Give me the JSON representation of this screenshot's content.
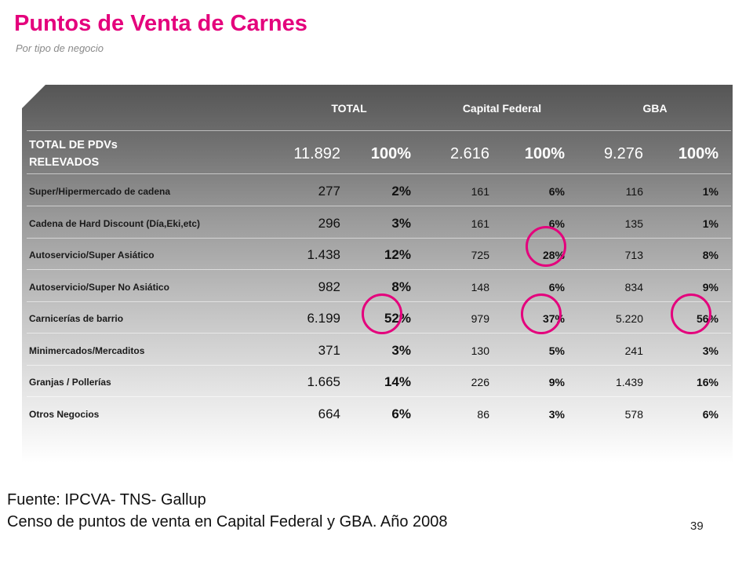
{
  "title": "Puntos de Venta de Carnes",
  "subtitle": "Por tipo de negocio",
  "accent_color": "#e4007c",
  "columns": {
    "total": "TOTAL",
    "capital": "Capital Federal",
    "gba": "GBA"
  },
  "total_row": {
    "label": "TOTAL DE PDVs RELEVADOS",
    "total_n": "11.892",
    "total_p": "100%",
    "capital_n": "2.616",
    "capital_p": "100%",
    "gba_n": "9.276",
    "gba_p": "100%"
  },
  "rows": [
    {
      "label": "Super/Hipermercado de cadena",
      "total_n": "277",
      "total_p": "2%",
      "capital_n": "161",
      "capital_p": "6%",
      "gba_n": "116",
      "gba_p": "1%"
    },
    {
      "label": "Cadena de Hard Discount (Día,Eki,etc)",
      "total_n": "296",
      "total_p": "3%",
      "capital_n": "161",
      "capital_p": "6%",
      "gba_n": "135",
      "gba_p": "1%"
    },
    {
      "label": "Autoservicio/Super Asiático",
      "total_n": "1.438",
      "total_p": "12%",
      "capital_n": "725",
      "capital_p": "28%",
      "gba_n": "713",
      "gba_p": "8%"
    },
    {
      "label": "Autoservicio/Super No Asiático",
      "total_n": "982",
      "total_p": "8%",
      "capital_n": "148",
      "capital_p": "6%",
      "gba_n": "834",
      "gba_p": "9%"
    },
    {
      "label": "Carnicerías de barrio",
      "total_n": "6.199",
      "total_p": "52%",
      "capital_n": "979",
      "capital_p": "37%",
      "gba_n": "5.220",
      "gba_p": "56%"
    },
    {
      "label": "Minimercados/Mercaditos",
      "total_n": "371",
      "total_p": "3%",
      "capital_n": "130",
      "capital_p": "5%",
      "gba_n": "241",
      "gba_p": "3%"
    },
    {
      "label": "Granjas / Pollerías",
      "total_n": "1.665",
      "total_p": "14%",
      "capital_n": "226",
      "capital_p": "9%",
      "gba_n": "1.439",
      "gba_p": "16%"
    },
    {
      "label": "Otros Negocios",
      "total_n": "664",
      "total_p": "6%",
      "capital_n": "86",
      "capital_p": "3%",
      "gba_n": "578",
      "gba_p": "6%"
    }
  ],
  "footer": {
    "source": "Fuente: IPCVA- TNS- Gallup",
    "note": "Censo de puntos de venta en Capital Federal y GBA. Año 2008"
  },
  "page_number": "39"
}
